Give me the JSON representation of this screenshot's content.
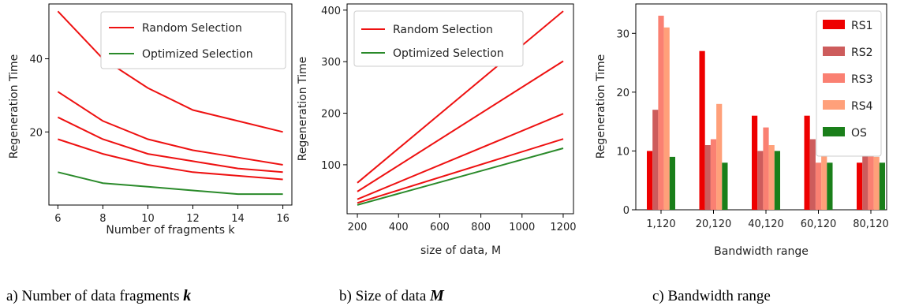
{
  "colors": {
    "random": "#ee1111",
    "optimized": "#2a8a2a",
    "RS1": "#ee0000",
    "RS2": "#cd5c5c",
    "RS3": "#fa8072",
    "RS4": "#ffa07a",
    "OS": "#1a7f1a"
  },
  "chart_data": [
    {
      "type": "line",
      "xlabel": "Number of fragments k",
      "ylabel": "Regeneration Time",
      "xlim": [
        5.6,
        16.4
      ],
      "ylim": [
        0,
        55
      ],
      "xticks": [
        6,
        8,
        10,
        12,
        14,
        16
      ],
      "yticks": [
        20,
        40
      ],
      "legend_position": "top-right",
      "legend": [
        "Random Selection",
        "Optimized Selection"
      ],
      "x": [
        6,
        8,
        10,
        12,
        14,
        16
      ],
      "series": [
        {
          "group": "random",
          "values": [
            53,
            40,
            32,
            26,
            23,
            20
          ]
        },
        {
          "group": "random",
          "values": [
            31,
            23,
            18,
            15,
            13,
            11
          ]
        },
        {
          "group": "random",
          "values": [
            24,
            18,
            14,
            12,
            10,
            9
          ]
        },
        {
          "group": "random",
          "values": [
            18,
            14,
            11,
            9,
            8,
            7
          ]
        },
        {
          "group": "optimized",
          "values": [
            9,
            6,
            5,
            4,
            3,
            3
          ]
        }
      ],
      "caption_prefix": "a) Number of data fragments ",
      "caption_var": "k"
    },
    {
      "type": "line",
      "xlabel": "size of data, M",
      "ylabel": "Regeneration Time",
      "xlim": [
        150,
        1250
      ],
      "ylim": [
        5,
        412
      ],
      "xticks": [
        200,
        400,
        600,
        800,
        1000,
        1200
      ],
      "yticks": [
        100,
        200,
        300,
        400
      ],
      "legend_position": "top-left",
      "legend": [
        "Random Selection",
        "Optimized Selection"
      ],
      "x": [
        200,
        1200
      ],
      "series": [
        {
          "group": "random",
          "values": [
            65,
            398
          ]
        },
        {
          "group": "random",
          "values": [
            48,
            301
          ]
        },
        {
          "group": "random",
          "values": [
            33,
            199
          ]
        },
        {
          "group": "random",
          "values": [
            26,
            150
          ]
        },
        {
          "group": "optimized",
          "values": [
            22,
            132
          ]
        }
      ],
      "caption_prefix": "b) Size of data ",
      "caption_var": "M"
    },
    {
      "type": "bar",
      "xlabel": "Bandwidth range",
      "ylabel": "Regeneration Time",
      "ylim": [
        0,
        35
      ],
      "yticks": [
        0,
        10,
        20,
        30
      ],
      "legend_position": "top-right",
      "categories": [
        "1,120",
        "20,120",
        "40,120",
        "60,120",
        "80,120"
      ],
      "series": [
        {
          "name": "RS1",
          "values": [
            10,
            27,
            16,
            16,
            8
          ]
        },
        {
          "name": "RS2",
          "values": [
            17,
            11,
            10,
            12,
            11
          ]
        },
        {
          "name": "RS3",
          "values": [
            33,
            12,
            14,
            8,
            10
          ]
        },
        {
          "name": "RS4",
          "values": [
            31,
            18,
            11,
            10,
            9
          ]
        },
        {
          "name": "OS",
          "values": [
            9,
            8,
            10,
            8,
            8
          ]
        }
      ],
      "caption_prefix": "c) Bandwidth range",
      "caption_var": ""
    }
  ]
}
